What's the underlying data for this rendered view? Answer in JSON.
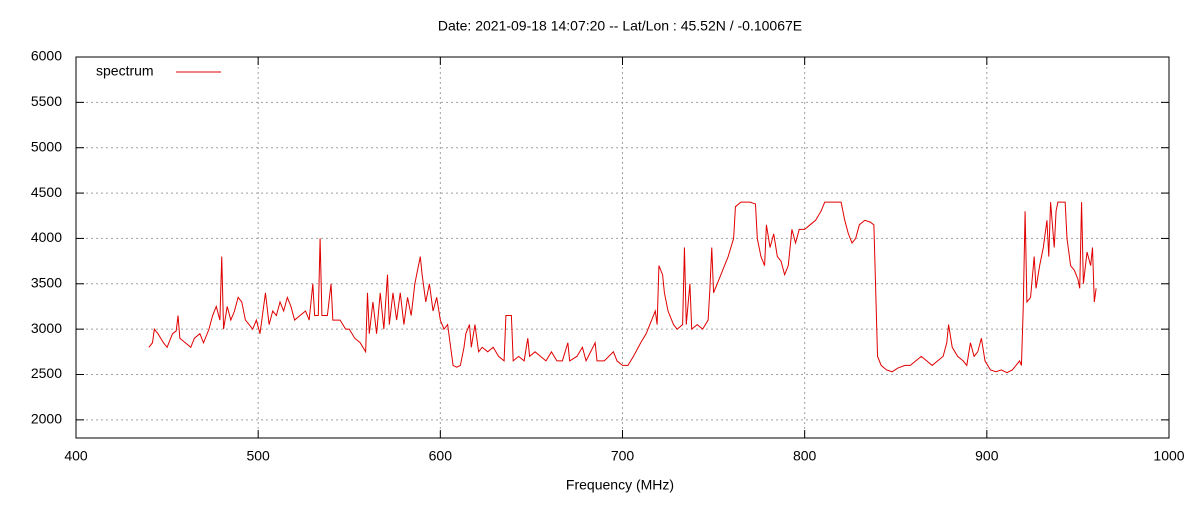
{
  "chart_data": {
    "type": "line",
    "title": "Date: 2021-09-18 14:07:20  --  Lat/Lon : 45.52N / -0.10067E",
    "xlabel": "Frequency (MHz)",
    "x": [
      440,
      442,
      443,
      445,
      448,
      450,
      453,
      455,
      456,
      457,
      460,
      463,
      465,
      468,
      470,
      473,
      475,
      477,
      479,
      480,
      481,
      483,
      485,
      487,
      489,
      491,
      493,
      495,
      497,
      499,
      501,
      503,
      504,
      506,
      508,
      510,
      512,
      514,
      516,
      518,
      520,
      523,
      526,
      528,
      530,
      531,
      533,
      534,
      535,
      538,
      540,
      541,
      545,
      548,
      550,
      553,
      556,
      559,
      560,
      561,
      563,
      565,
      567,
      569,
      571,
      572,
      574,
      576,
      578,
      580,
      582,
      584,
      586,
      588,
      589,
      590,
      592,
      594,
      596,
      598,
      600,
      602,
      604,
      606,
      607,
      609,
      611,
      613,
      614,
      616,
      617,
      619,
      621,
      623,
      626,
      629,
      632,
      635,
      636,
      639,
      640,
      643,
      646,
      648,
      649,
      652,
      655,
      658,
      661,
      664,
      667,
      670,
      671,
      675,
      678,
      680,
      685,
      686,
      690,
      695,
      697,
      700,
      703,
      706,
      710,
      713,
      716,
      718,
      719,
      720,
      722,
      723,
      725,
      728,
      730,
      733,
      734,
      735,
      737,
      738,
      741,
      744,
      747,
      748,
      749,
      750,
      752,
      755,
      758,
      761,
      762,
      765,
      770,
      773,
      774,
      776,
      778,
      779,
      781,
      783,
      785,
      787,
      789,
      791,
      793,
      795,
      797,
      800,
      803,
      806,
      809,
      811,
      816,
      820,
      822,
      824,
      826,
      828,
      830,
      833,
      836,
      838,
      840,
      842,
      845,
      848,
      851,
      855,
      858,
      861,
      864,
      867,
      870,
      873,
      876,
      878,
      879,
      881,
      884,
      887,
      889,
      891,
      893,
      895,
      897,
      899,
      902,
      905,
      908,
      911,
      914,
      916,
      918,
      919,
      920,
      921,
      922,
      924,
      926,
      927,
      929,
      931,
      933,
      934,
      935,
      937,
      938,
      939,
      941,
      943,
      944,
      946,
      948,
      950,
      951,
      952,
      953,
      955,
      957,
      958,
      959,
      960
    ],
    "series": [
      {
        "name": "spectrum",
        "color": "#e00000",
        "values": [
          2800,
          2850,
          3000,
          2950,
          2850,
          2800,
          2950,
          2980,
          3150,
          2900,
          2850,
          2800,
          2900,
          2950,
          2850,
          3000,
          3150,
          3250,
          3100,
          3800,
          3000,
          3250,
          3100,
          3200,
          3350,
          3300,
          3100,
          3050,
          3000,
          3100,
          2950,
          3250,
          3400,
          3050,
          3200,
          3150,
          3300,
          3200,
          3350,
          3250,
          3100,
          3150,
          3200,
          3100,
          3500,
          3150,
          3150,
          4000,
          3150,
          3150,
          3500,
          3100,
          3100,
          3000,
          3000,
          2900,
          2850,
          2750,
          3400,
          2950,
          3300,
          2950,
          3400,
          3000,
          3600,
          3050,
          3400,
          3100,
          3400,
          3050,
          3350,
          3150,
          3500,
          3700,
          3800,
          3600,
          3300,
          3500,
          3200,
          3350,
          3100,
          3000,
          3050,
          2750,
          2600,
          2580,
          2600,
          2800,
          2950,
          3050,
          2800,
          3050,
          2750,
          2800,
          2750,
          2800,
          2700,
          2650,
          3150,
          3150,
          2650,
          2700,
          2650,
          2900,
          2700,
          2750,
          2700,
          2650,
          2750,
          2650,
          2650,
          2850,
          2650,
          2700,
          2800,
          2650,
          2850,
          2650,
          2650,
          2750,
          2650,
          2600,
          2600,
          2700,
          2850,
          2950,
          3100,
          3200,
          3050,
          3700,
          3600,
          3400,
          3200,
          3050,
          3000,
          3050,
          3900,
          3050,
          3500,
          3000,
          3050,
          3000,
          3100,
          3450,
          3900,
          3400,
          3500,
          3650,
          3800,
          4000,
          4350,
          4400,
          4400,
          4380,
          4000,
          3800,
          3700,
          4150,
          3900,
          4050,
          3800,
          3750,
          3600,
          3700,
          4100,
          3950,
          4100,
          4100,
          4150,
          4200,
          4300,
          4400,
          4400,
          4400,
          4200,
          4050,
          3950,
          4000,
          4150,
          4200,
          4180,
          4150,
          2700,
          2600,
          2550,
          2530,
          2570,
          2600,
          2600,
          2650,
          2700,
          2650,
          2600,
          2650,
          2700,
          2850,
          3050,
          2800,
          2700,
          2650,
          2600,
          2850,
          2700,
          2750,
          2900,
          2650,
          2550,
          2530,
          2550,
          2520,
          2550,
          2600,
          2650,
          2600,
          3250,
          4300,
          3300,
          3350,
          3800,
          3450,
          3700,
          3900,
          4200,
          3800,
          4400,
          3900,
          4300,
          4400,
          4400,
          4400,
          4000,
          3700,
          3650,
          3550,
          3450,
          4400,
          3500,
          3850,
          3700,
          3900,
          3300,
          3450
        ]
      }
    ],
    "xlim": [
      400,
      1000
    ],
    "xticks": [
      400,
      500,
      600,
      700,
      800,
      900,
      1000
    ],
    "ylim": [
      1800,
      6000
    ],
    "yticks": [
      2000,
      2500,
      3000,
      3500,
      4000,
      4500,
      5000,
      5500,
      6000
    ],
    "grid": true,
    "legend": "top-left"
  }
}
